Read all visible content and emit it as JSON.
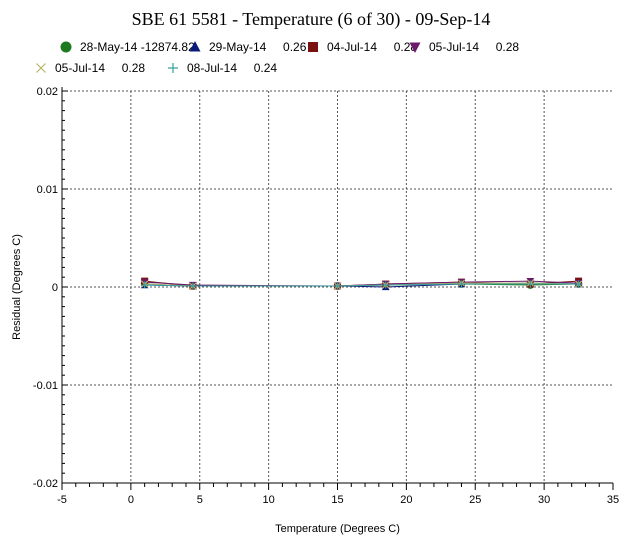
{
  "chart_data": {
    "type": "line",
    "title": "SBE 61 5581 - Temperature (6 of 30) - 09-Sep-14",
    "xlabel": "Temperature (Degrees C)",
    "ylabel": "Residual (Degrees C)",
    "xlim": [
      -5,
      35
    ],
    "ylim": [
      -0.02,
      0.02
    ],
    "xticks": [
      -5,
      0,
      5,
      10,
      15,
      20,
      25,
      30,
      35
    ],
    "yticks": [
      -0.02,
      -0.01,
      0,
      0.01,
      0.02
    ],
    "xtick_labels": [
      "-5",
      "0",
      "5",
      "10",
      "15",
      "20",
      "25",
      "30",
      "35"
    ],
    "ytick_labels": [
      "-0.02",
      "-0.01",
      "0",
      "0.01",
      "0.02"
    ],
    "grid": true,
    "legend_position": "top",
    "x": [
      1.0,
      4.5,
      15.0,
      18.5,
      24.0,
      29.0,
      32.5
    ],
    "series": [
      {
        "name": "28-May-14 -12874.82",
        "label": "28-May-14 -12874.82",
        "color": "#1f7a1f",
        "marker": "circle",
        "values": [
          0.0003,
          0.0001,
          0.0001,
          0.0002,
          0.0003,
          0.0002,
          0.0003
        ]
      },
      {
        "name": "29-May-14 0.26",
        "label": "29-May-14     0.26",
        "color": "#0a1a7a",
        "marker": "triangle",
        "values": [
          0.0002,
          0.0001,
          0.0001,
          0.0,
          0.0003,
          0.0004,
          0.0003
        ]
      },
      {
        "name": "04-Jul-14 0.28",
        "label": "04-Jul-14     0.28",
        "color": "#7a1010",
        "marker": "square",
        "values": [
          0.0006,
          0.0001,
          0.0001,
          0.0003,
          0.0005,
          0.0003,
          0.0006
        ]
      },
      {
        "name": "05-Jul-14 0.28",
        "label": "05-Jul-14     0.28",
        "color": "#6a1a6a",
        "marker": "triangle-down",
        "values": [
          0.0005,
          0.0002,
          0.0001,
          0.0003,
          0.0005,
          0.0006,
          0.0004
        ]
      },
      {
        "name": "05-Jul-14 0.28",
        "label": "05-Jul-14     0.28",
        "color": "#b5b56a",
        "marker": "x",
        "values": [
          0.0003,
          0.0001,
          0.0001,
          0.0002,
          0.0004,
          0.0004,
          0.0003
        ]
      },
      {
        "name": "08-Jul-14 0.24",
        "label": "08-Jul-14     0.24",
        "color": "#3aa0a0",
        "marker": "plus",
        "values": [
          0.0002,
          0.0001,
          0.0001,
          0.0002,
          0.0003,
          0.0003,
          0.0003
        ]
      }
    ]
  }
}
